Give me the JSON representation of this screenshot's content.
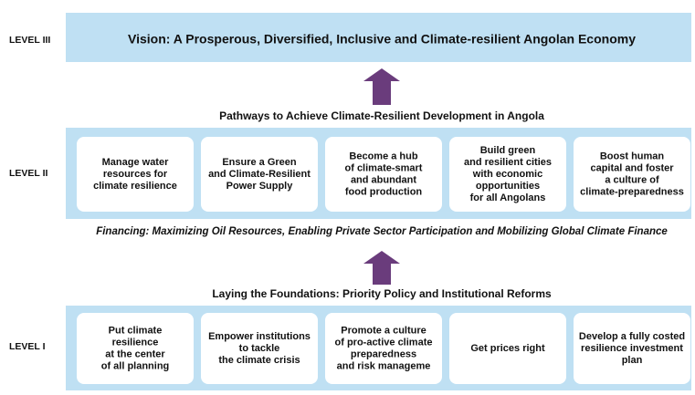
{
  "levels": {
    "level3": "LEVEL III",
    "level2": "LEVEL II",
    "level1": "LEVEL I"
  },
  "vision": "Vision: A Prosperous, Diversified, Inclusive and Climate-resilient Angolan Economy",
  "pathways": {
    "heading": "Pathways to Achieve Climate-Resilient Development in Angola",
    "boxes": [
      [
        "Manage water",
        "resources for",
        "climate resilience"
      ],
      [
        "Ensure a Green",
        "and Climate-Resilient",
        "Power Supply"
      ],
      [
        "Become a hub",
        "of climate-smart",
        "and abundant",
        "food production"
      ],
      [
        "Build green",
        "and resilient cities",
        "with economic",
        "opportunities",
        "for all Angolans"
      ],
      [
        "Boost human",
        "capital and foster",
        "a culture of",
        "climate-preparedness"
      ]
    ]
  },
  "financing": "Financing: Maximizing Oil Resources, Enabling Private Sector Participation and Mobilizing Global Climate Finance",
  "foundations": {
    "heading": "Laying the Foundations: Priority Policy and Institutional Reforms",
    "boxes": [
      [
        "Put climate",
        "resilience",
        "at the center",
        "of all planning"
      ],
      [
        "Empower institutions",
        "to tackle",
        "the climate crisis"
      ],
      [
        "Promote a culture",
        "of pro-active climate",
        "preparedness",
        "and risk manageme"
      ],
      [
        "Get prices right"
      ],
      [
        "Develop a fully costed",
        "resilience investment",
        "plan"
      ]
    ]
  }
}
